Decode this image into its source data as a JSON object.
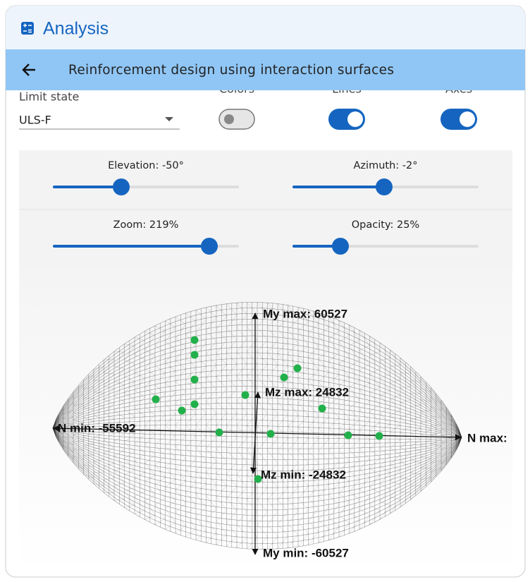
{
  "header": {
    "title": "Analysis"
  },
  "toolbar": {
    "title": "Reinforcement design using interaction surfaces"
  },
  "controls": {
    "limit_state": {
      "label": "Limit state",
      "value": "ULS-F"
    },
    "toggles": [
      {
        "label": "Colors",
        "on": false
      },
      {
        "label": "Lines",
        "on": true
      },
      {
        "label": "Axes",
        "on": true
      }
    ]
  },
  "sliders": [
    {
      "label": "Elevation: -50°"
    },
    {
      "label": "Azimuth: -2°"
    },
    {
      "label": "Zoom: 219%"
    },
    {
      "label": "Opacity: 25%"
    }
  ],
  "plot": {
    "my_max": "My max: 60527",
    "mz_max": "Mz max: 24832",
    "n_min": "N min: -55592",
    "n_max": "N max:",
    "mz_min": "Mz min: -24832",
    "my_min": "My min: -60527"
  }
}
